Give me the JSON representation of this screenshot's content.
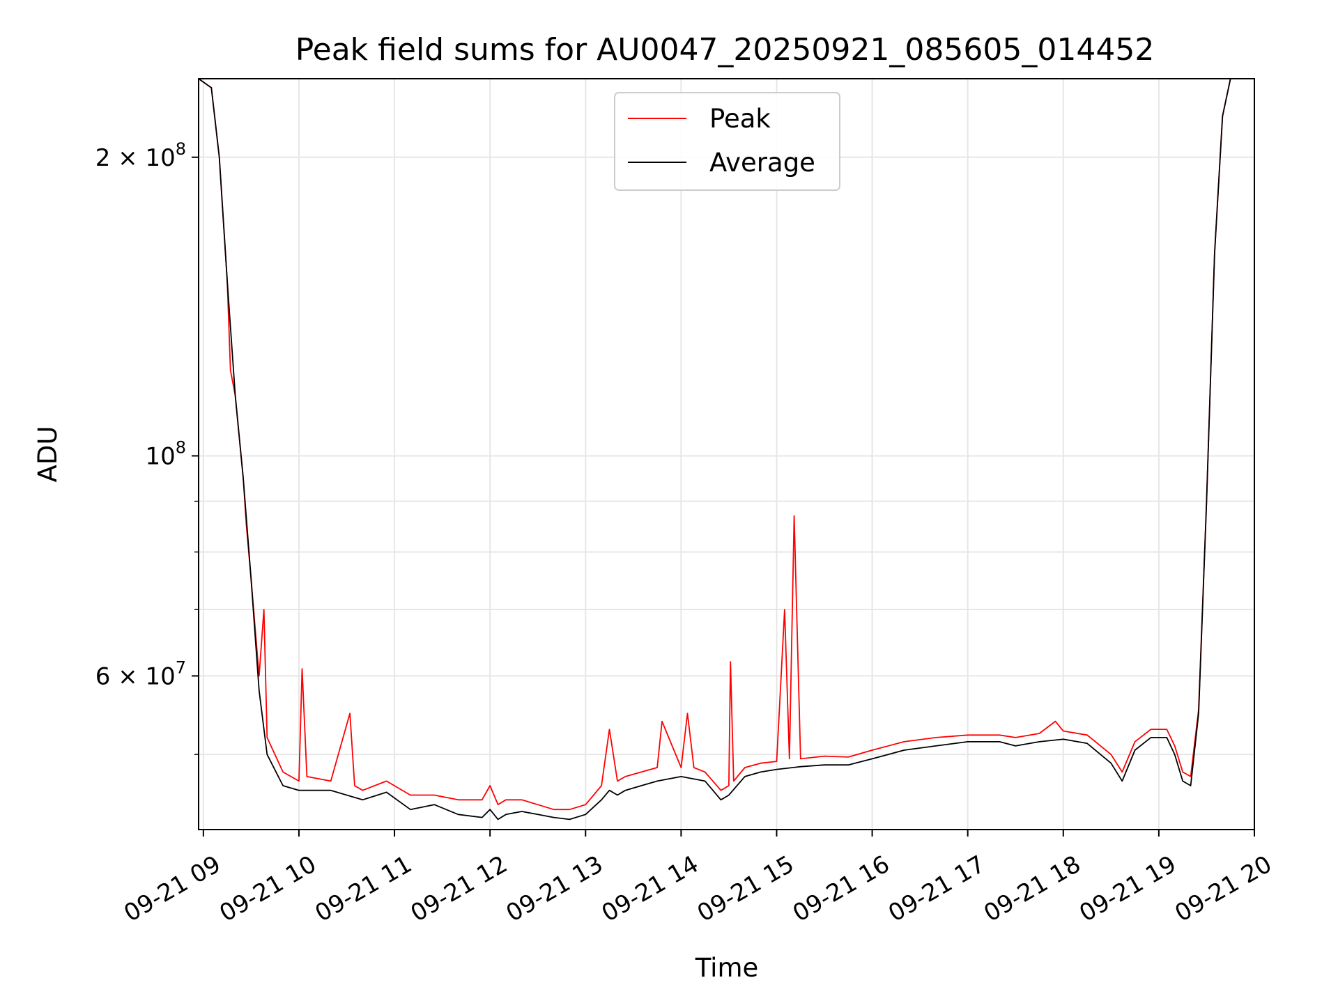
{
  "chart_data": {
    "type": "line",
    "title": "Peak field sums for AU0047_20250921_085605_014452",
    "xlabel": "Time",
    "ylabel": "ADU",
    "y_scale": "log",
    "ylim": [
      42000000,
      240000000
    ],
    "xlim": [
      "2025-09-21 08:57",
      "2025-09-21 20:00"
    ],
    "x_ticks": [
      {
        "value": "2025-09-21 09:00",
        "label": "09-21 09"
      },
      {
        "value": "2025-09-21 10:00",
        "label": "09-21 10"
      },
      {
        "value": "2025-09-21 11:00",
        "label": "09-21 11"
      },
      {
        "value": "2025-09-21 12:00",
        "label": "09-21 12"
      },
      {
        "value": "2025-09-21 13:00",
        "label": "09-21 13"
      },
      {
        "value": "2025-09-21 14:00",
        "label": "09-21 14"
      },
      {
        "value": "2025-09-21 15:00",
        "label": "09-21 15"
      },
      {
        "value": "2025-09-21 16:00",
        "label": "09-21 16"
      },
      {
        "value": "2025-09-21 17:00",
        "label": "09-21 17"
      },
      {
        "value": "2025-09-21 18:00",
        "label": "09-21 18"
      },
      {
        "value": "2025-09-21 19:00",
        "label": "09-21 19"
      },
      {
        "value": "2025-09-21 20:00",
        "label": "09-21 20"
      }
    ],
    "y_ticks": [
      {
        "value": 60000000,
        "mantissa": "6 × 10",
        "exp": "7"
      },
      {
        "value": 100000000,
        "mantissa": "10",
        "exp": "8"
      },
      {
        "value": 200000000,
        "mantissa": "2 × 10",
        "exp": "8"
      }
    ],
    "y_minor_ticks": [
      50000000,
      70000000,
      80000000,
      90000000
    ],
    "grid": true,
    "legend_position": "upper-center",
    "series": [
      {
        "name": "Average",
        "color": "#000000",
        "x": [
          "2025-09-21 08:57",
          "2025-09-21 09:05",
          "2025-09-21 09:10",
          "2025-09-21 09:15",
          "2025-09-21 09:20",
          "2025-09-21 09:25",
          "2025-09-21 09:30",
          "2025-09-21 09:35",
          "2025-09-21 09:40",
          "2025-09-21 09:50",
          "2025-09-21 10:00",
          "2025-09-21 10:20",
          "2025-09-21 10:40",
          "2025-09-21 10:55",
          "2025-09-21 11:10",
          "2025-09-21 11:25",
          "2025-09-21 11:40",
          "2025-09-21 11:55",
          "2025-09-21 12:00",
          "2025-09-21 12:05",
          "2025-09-21 12:10",
          "2025-09-21 12:20",
          "2025-09-21 12:30",
          "2025-09-21 12:40",
          "2025-09-21 12:50",
          "2025-09-21 13:00",
          "2025-09-21 13:10",
          "2025-09-21 13:15",
          "2025-09-21 13:20",
          "2025-09-21 13:25",
          "2025-09-21 13:35",
          "2025-09-21 13:45",
          "2025-09-21 14:00",
          "2025-09-21 14:15",
          "2025-09-21 14:25",
          "2025-09-21 14:30",
          "2025-09-21 14:40",
          "2025-09-21 14:50",
          "2025-09-21 15:00",
          "2025-09-21 15:15",
          "2025-09-21 15:30",
          "2025-09-21 15:45",
          "2025-09-21 16:00",
          "2025-09-21 16:20",
          "2025-09-21 16:40",
          "2025-09-21 17:00",
          "2025-09-21 17:20",
          "2025-09-21 17:30",
          "2025-09-21 17:45",
          "2025-09-21 18:00",
          "2025-09-21 18:15",
          "2025-09-21 18:30",
          "2025-09-21 18:37",
          "2025-09-21 18:45",
          "2025-09-21 18:55",
          "2025-09-21 19:05",
          "2025-09-21 19:10",
          "2025-09-21 19:15",
          "2025-09-21 19:20",
          "2025-09-21 19:25",
          "2025-09-21 19:30",
          "2025-09-21 19:35",
          "2025-09-21 19:40",
          "2025-09-21 19:45",
          "2025-09-21 19:50"
        ],
        "y": [
          240000000,
          235000000,
          200000000,
          150000000,
          115000000,
          95000000,
          75000000,
          58000000,
          50000000,
          46500000,
          46000000,
          46000000,
          45000000,
          45800000,
          44000000,
          44500000,
          43500000,
          43200000,
          44000000,
          43000000,
          43500000,
          43800000,
          43500000,
          43200000,
          43000000,
          43500000,
          45000000,
          46000000,
          45500000,
          46000000,
          46500000,
          47000000,
          47500000,
          47000000,
          45000000,
          45500000,
          47500000,
          48000000,
          48300000,
          48600000,
          48800000,
          48800000,
          49500000,
          50500000,
          51000000,
          51500000,
          51500000,
          51000000,
          51500000,
          51800000,
          51300000,
          49000000,
          47000000,
          50500000,
          52000000,
          52000000,
          50000000,
          47000000,
          46500000,
          55000000,
          90000000,
          160000000,
          220000000,
          240000000,
          240000000
        ]
      },
      {
        "name": "Peak",
        "color": "#ff0000",
        "x": [
          "2025-09-21 08:57",
          "2025-09-21 09:05",
          "2025-09-21 09:10",
          "2025-09-21 09:15",
          "2025-09-21 09:17",
          "2025-09-21 09:20",
          "2025-09-21 09:25",
          "2025-09-21 09:27",
          "2025-09-21 09:30",
          "2025-09-21 09:35",
          "2025-09-21 09:38",
          "2025-09-21 09:40",
          "2025-09-21 09:50",
          "2025-09-21 10:00",
          "2025-09-21 10:02",
          "2025-09-21 10:05",
          "2025-09-21 10:20",
          "2025-09-21 10:32",
          "2025-09-21 10:35",
          "2025-09-21 10:40",
          "2025-09-21 10:55",
          "2025-09-21 11:10",
          "2025-09-21 11:25",
          "2025-09-21 11:40",
          "2025-09-21 11:55",
          "2025-09-21 12:00",
          "2025-09-21 12:05",
          "2025-09-21 12:10",
          "2025-09-21 12:20",
          "2025-09-21 12:30",
          "2025-09-21 12:40",
          "2025-09-21 12:50",
          "2025-09-21 13:00",
          "2025-09-21 13:10",
          "2025-09-21 13:15",
          "2025-09-21 13:20",
          "2025-09-21 13:25",
          "2025-09-21 13:35",
          "2025-09-21 13:45",
          "2025-09-21 13:48",
          "2025-09-21 14:00",
          "2025-09-21 14:04",
          "2025-09-21 14:08",
          "2025-09-21 14:15",
          "2025-09-21 14:25",
          "2025-09-21 14:30",
          "2025-09-21 14:31",
          "2025-09-21 14:33",
          "2025-09-21 14:40",
          "2025-09-21 14:50",
          "2025-09-21 15:00",
          "2025-09-21 15:05",
          "2025-09-21 15:08",
          "2025-09-21 15:11",
          "2025-09-21 15:15",
          "2025-09-21 15:30",
          "2025-09-21 15:45",
          "2025-09-21 16:00",
          "2025-09-21 16:20",
          "2025-09-21 16:40",
          "2025-09-21 17:00",
          "2025-09-21 17:20",
          "2025-09-21 17:30",
          "2025-09-21 17:45",
          "2025-09-21 17:55",
          "2025-09-21 18:00",
          "2025-09-21 18:15",
          "2025-09-21 18:30",
          "2025-09-21 18:37",
          "2025-09-21 18:45",
          "2025-09-21 18:55",
          "2025-09-21 19:05",
          "2025-09-21 19:10",
          "2025-09-21 19:15",
          "2025-09-21 19:20",
          "2025-09-21 19:25",
          "2025-09-21 19:30",
          "2025-09-21 19:35",
          "2025-09-21 19:40",
          "2025-09-21 19:45",
          "2025-09-21 19:50"
        ],
        "y": [
          240000000,
          235000000,
          200000000,
          150000000,
          122000000,
          115000000,
          95000000,
          85000000,
          75000000,
          60000000,
          70000000,
          52000000,
          48000000,
          47000000,
          61000000,
          47500000,
          47000000,
          55000000,
          46500000,
          46000000,
          47000000,
          45500000,
          45500000,
          45000000,
          45000000,
          46500000,
          44500000,
          45000000,
          45000000,
          44500000,
          44000000,
          44000000,
          44500000,
          46500000,
          53000000,
          47000000,
          47500000,
          48000000,
          48500000,
          54000000,
          48500000,
          55000000,
          48500000,
          48000000,
          46000000,
          46500000,
          62000000,
          47000000,
          48500000,
          49000000,
          49200000,
          70000000,
          49500000,
          87000000,
          49500000,
          49800000,
          49700000,
          50500000,
          51500000,
          52000000,
          52300000,
          52300000,
          52000000,
          52500000,
          54000000,
          52800000,
          52300000,
          50000000,
          48000000,
          51500000,
          53000000,
          53000000,
          51000000,
          48000000,
          47500000,
          55500000,
          90000000,
          160000000,
          220000000,
          240000000,
          240000000
        ]
      }
    ]
  }
}
